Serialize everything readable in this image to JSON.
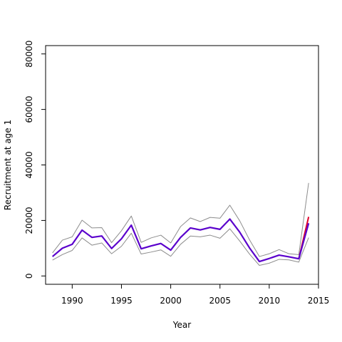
{
  "chart_data": {
    "type": "line",
    "title": "",
    "xlabel": "Year",
    "ylabel": "Recruitment at age 1",
    "xlim": [
      1987.3,
      2015
    ],
    "ylim": [
      -3000,
      83000
    ],
    "x_ticks": [
      1990,
      1995,
      2000,
      2005,
      2010,
      2015
    ],
    "x_tick_labels": [
      "1990",
      "1995",
      "2000",
      "2005",
      "2010",
      "2015"
    ],
    "y_ticks": [
      0,
      20000,
      40000,
      60000,
      80000
    ],
    "y_tick_labels": [
      "0",
      "20000",
      "40000",
      "60000",
      "80000"
    ],
    "grid": false,
    "colors": {
      "estimate": "#5a00cc",
      "bounds": "#8c8c8c",
      "terminal": "#e0002a",
      "axis": "#000000"
    },
    "x": [
      1988,
      1989,
      1990,
      1991,
      1992,
      1993,
      1994,
      1995,
      1996,
      1997,
      1998,
      1999,
      2000,
      2001,
      2002,
      2003,
      2004,
      2005,
      2006,
      2007,
      2008,
      2009,
      2010,
      2011,
      2012,
      2013,
      2014
    ],
    "series": [
      {
        "role": "estimate",
        "values": [
          7000,
          10000,
          11400,
          16500,
          13900,
          14400,
          9900,
          13400,
          18300,
          9800,
          10800,
          11700,
          9300,
          13900,
          17300,
          16600,
          17500,
          16800,
          20500,
          15800,
          10100,
          5200,
          6300,
          7500,
          6900,
          6200,
          19000
        ]
      },
      {
        "role": "upper",
        "values": [
          8300,
          12900,
          14100,
          20100,
          17300,
          17400,
          12000,
          16300,
          21600,
          12100,
          13700,
          14700,
          11900,
          17800,
          20900,
          19600,
          21100,
          20800,
          25500,
          19900,
          13000,
          7000,
          8000,
          9500,
          8000,
          7700,
          33500
        ]
      },
      {
        "role": "lower",
        "values": [
          5700,
          7700,
          9200,
          13700,
          11100,
          11900,
          8000,
          10700,
          15400,
          7900,
          8600,
          9400,
          7100,
          11400,
          14400,
          14100,
          14700,
          13600,
          17000,
          12600,
          7900,
          3800,
          4600,
          6000,
          5800,
          5000,
          13800
        ]
      },
      {
        "role": "terminal",
        "x": [
          2013,
          2014
        ],
        "values": [
          6200,
          21300
        ]
      }
    ]
  }
}
